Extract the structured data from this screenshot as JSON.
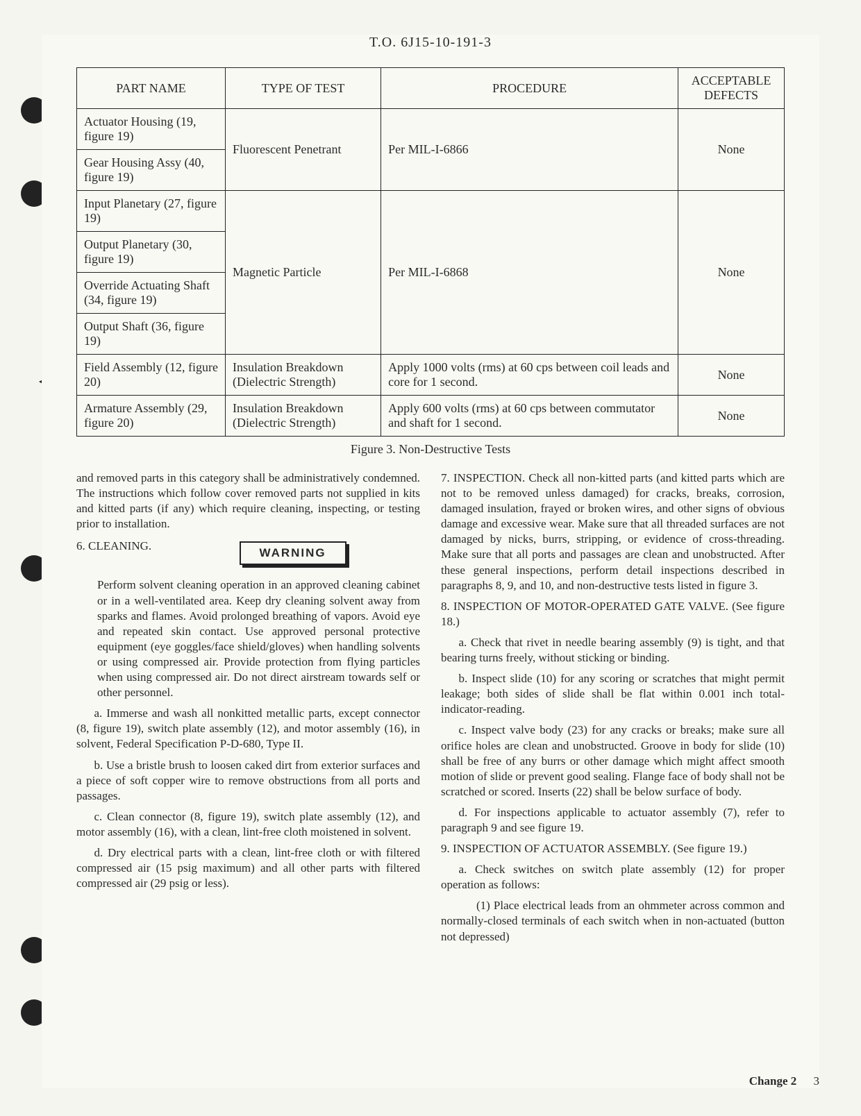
{
  "header": {
    "doc_number": "T.O. 6J15-10-191-3"
  },
  "table": {
    "col_widths": [
      "21%",
      "22%",
      "42%",
      "15%"
    ],
    "headers": [
      "PART NAME",
      "TYPE OF TEST",
      "PROCEDURE",
      "ACCEPTABLE DEFECTS"
    ],
    "groups": [
      {
        "test_type": "Fluorescent Penetrant",
        "procedure": "Per MIL-I-6866",
        "defects": "None",
        "parts": [
          "Actuator Housing (19, figure 19)",
          "Gear Housing Assy (40, figure 19)"
        ]
      },
      {
        "test_type": "Magnetic Particle",
        "procedure": "Per MIL-I-6868",
        "defects": "None",
        "parts": [
          "Input Planetary (27, figure 19)",
          "Output Planetary (30, figure 19)",
          "Override Actuating Shaft (34, figure 19)",
          "Output Shaft (36, figure 19)"
        ]
      },
      {
        "test_type": "Insulation Breakdown (Dielectric Strength)",
        "procedure": "Apply 1000 volts (rms) at 60 cps between coil leads and core for 1 second.",
        "defects": "None",
        "parts": [
          "Field Assembly (12, figure 20)"
        ]
      },
      {
        "test_type": "Insulation Breakdown (Dielectric Strength)",
        "procedure": "Apply 600 volts (rms) at 60 cps between commutator and shaft for 1 second.",
        "defects": "None",
        "parts": [
          "Armature Assembly (29, figure 20)"
        ]
      }
    ]
  },
  "figure_caption": "Figure 3.  Non-Destructive Tests",
  "left_col": {
    "intro": "and removed parts in this category shall be administratively condemned.  The instructions which follow cover removed parts not supplied in kits and kitted parts (if any) which require cleaning, inspecting, or testing prior to installation.",
    "sec6_title": "6. CLEANING.",
    "warning": "WARNING",
    "warning_text": "Perform solvent cleaning operation in an approved cleaning cabinet or in a well-ventilated area. Keep dry cleaning solvent away from sparks and flames. Avoid prolonged breathing of vapors. Avoid eye and repeated skin contact. Use approved personal protective equipment (eye goggles/face shield/gloves) when handling solvents or using compressed air. Provide protection from flying particles when using compressed air. Do not direct airstream towards self or other personnel.",
    "a": "a. Immerse and wash all nonkitted metallic parts, except connector (8, figure 19), switch plate assembly (12), and motor assembly (16), in solvent, Federal Specification P-D-680, Type II.",
    "b": "b. Use a bristle brush to loosen caked dirt from exterior surfaces and a piece of soft copper wire to remove obstructions from all ports and passages.",
    "c": "c. Clean connector (8, figure 19), switch plate assembly (12), and motor assembly (16), with a clean, lint-free cloth moistened in solvent.",
    "d": "d. Dry electrical parts with a clean, lint-free cloth or with filtered compressed air (15 psig maximum) and all other parts with filtered compressed air (29 psig or less)."
  },
  "right_col": {
    "sec7": "7. INSPECTION. Check all non-kitted parts (and kitted parts which are not to be removed unless damaged) for cracks, breaks, corrosion, damaged insulation, frayed or broken wires, and other signs of obvious damage and excessive wear. Make sure that all threaded surfaces are not damaged by nicks, burrs, stripping, or evidence of cross-threading. Make sure that all ports and passages are clean and unobstructed. After these general inspections, perform detail inspections described in paragraphs 8, 9, and 10, and non-destructive tests listed in figure 3.",
    "sec8_title": "8.  INSPECTION OF MOTOR-OPERATED GATE VALVE. (See figure 18.)",
    "sec8_a": "a. Check that rivet in needle bearing assembly (9) is tight, and that bearing turns freely, without sticking or binding.",
    "sec8_b": "b. Inspect slide (10) for any scoring or scratches that might permit leakage; both sides of slide shall be flat within 0.001 inch total-indicator-reading.",
    "sec8_c": "c. Inspect valve body (23) for any cracks or breaks; make sure all orifice holes are clean and unobstructed. Groove in body for slide (10) shall be free of any burrs or other damage which might affect smooth motion of slide or prevent good sealing. Flange face of body shall not be scratched or scored. Inserts (22) shall be below surface of body.",
    "sec8_d": "d. For inspections applicable to actuator assembly (7), refer to paragraph 9 and see figure 19.",
    "sec9_title": "9. INSPECTION OF ACTUATOR ASSEMBLY.  (See figure 19.)",
    "sec9_a": "a. Check switches on switch plate assembly (12) for proper operation as follows:",
    "sec9_a1": "(1) Place electrical leads from an ohmmeter across common and normally-closed terminals of each switch when in non-actuated (button not depressed)"
  },
  "footer": {
    "change": "Change 2",
    "page": "3"
  }
}
